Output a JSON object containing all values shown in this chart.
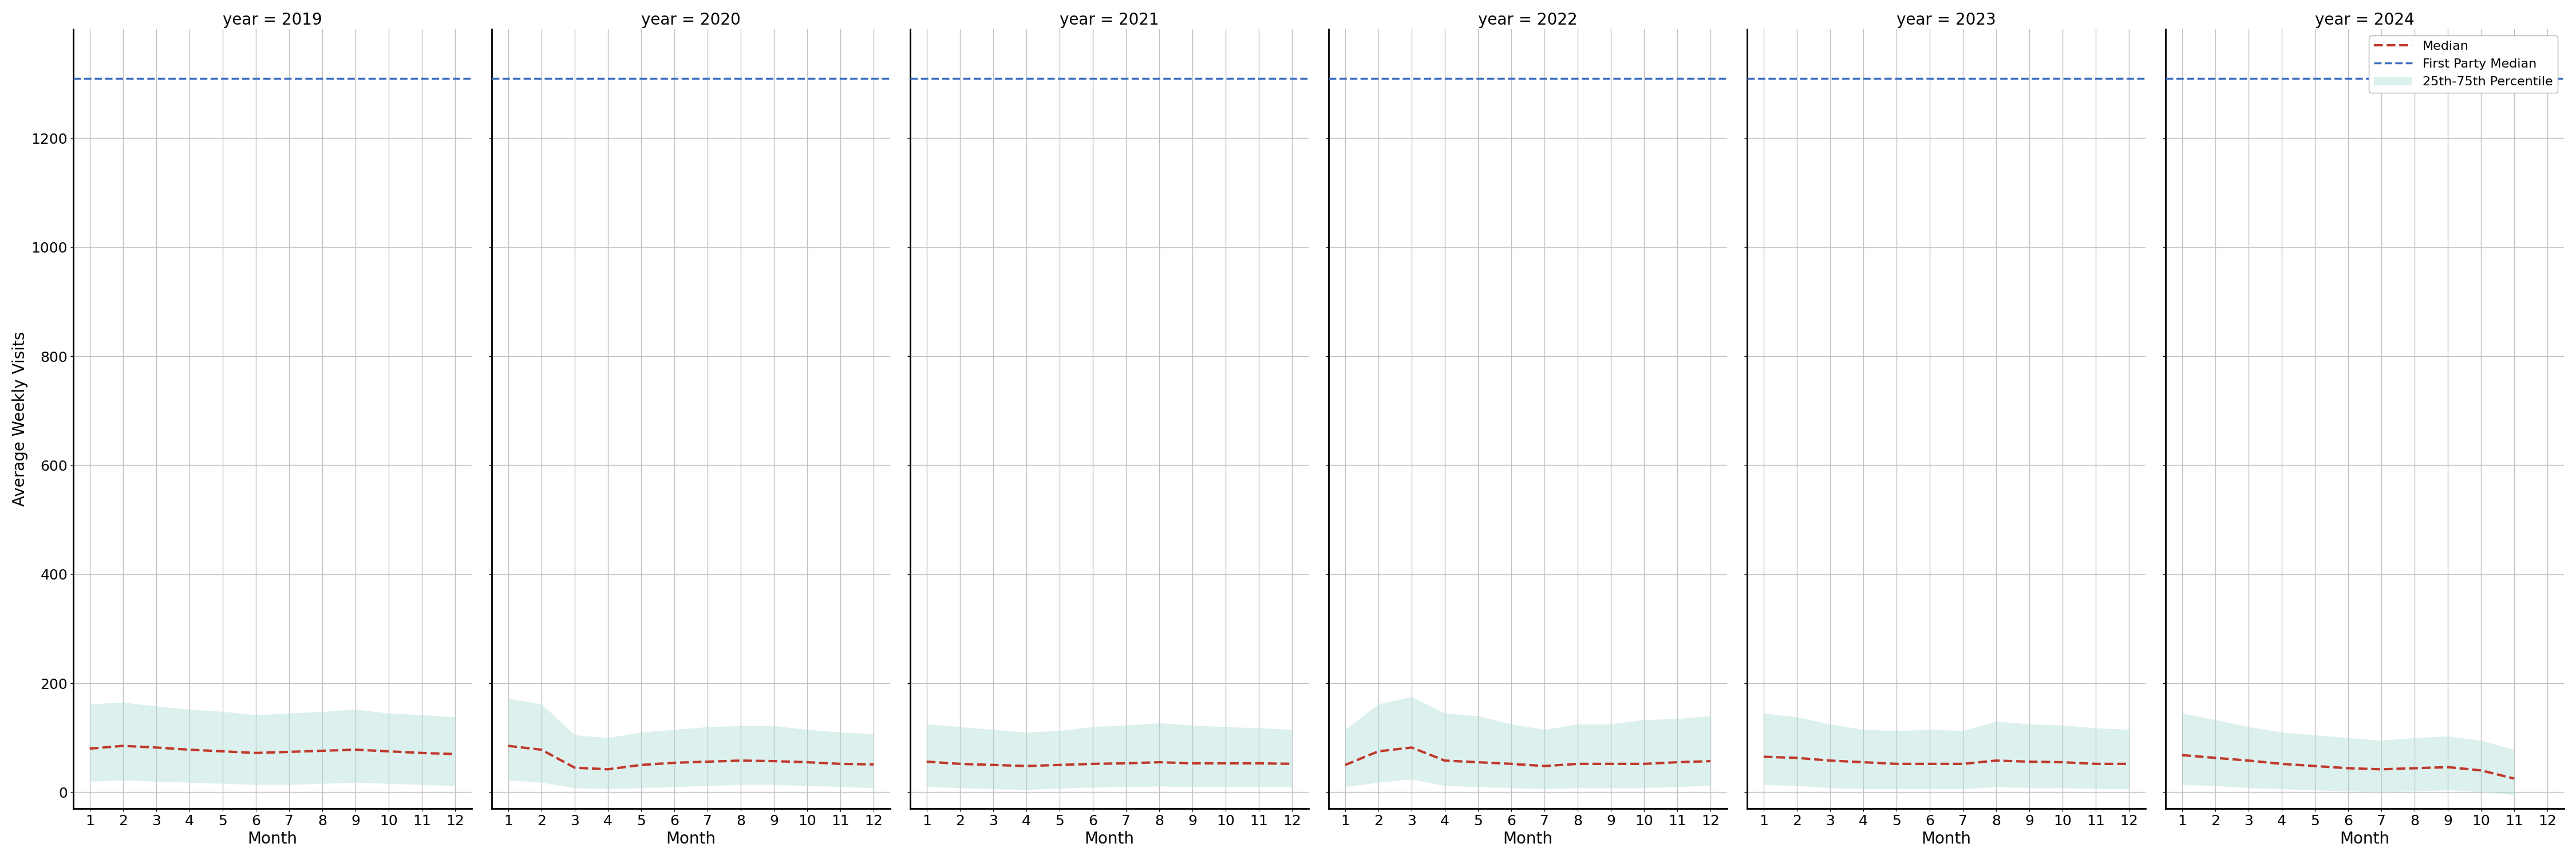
{
  "years": [
    2019,
    2020,
    2021,
    2022,
    2023,
    2024
  ],
  "months": [
    1,
    2,
    3,
    4,
    5,
    6,
    7,
    8,
    9,
    10,
    11,
    12
  ],
  "first_party_median": 1310,
  "ylabel": "Average Weekly Visits",
  "xlabel": "Month",
  "ylim": [
    -30,
    1400
  ],
  "yticks": [
    0,
    200,
    400,
    600,
    800,
    1000,
    1200
  ],
  "bg_color": "#ffffff",
  "grid_color": "#c0c0c0",
  "fill_color": "#b2dfdb",
  "fill_alpha": 0.45,
  "median_color": "#c0392b",
  "fp_color": "#3a6dbf",
  "median_linewidth": 3.0,
  "fp_linewidth": 2.5,
  "legend_labels": [
    "Median",
    "First Party Median",
    "25th-75th Percentile"
  ],
  "median_data": {
    "2019": [
      80,
      85,
      82,
      78,
      75,
      72,
      74,
      76,
      78,
      75,
      72,
      70
    ],
    "2020": [
      85,
      78,
      45,
      42,
      50,
      54,
      56,
      58,
      57,
      55,
      52,
      51
    ],
    "2021": [
      56,
      52,
      50,
      48,
      50,
      52,
      53,
      55,
      53,
      53,
      53,
      52
    ],
    "2022": [
      50,
      75,
      82,
      58,
      55,
      52,
      48,
      52,
      52,
      52,
      55,
      57
    ],
    "2023": [
      65,
      63,
      58,
      55,
      52,
      52,
      52,
      58,
      56,
      55,
      52,
      52
    ],
    "2024": [
      68,
      63,
      58,
      52,
      48,
      44,
      42,
      44,
      46,
      40,
      25,
      null
    ]
  },
  "q25_data": {
    "2019": [
      20,
      22,
      20,
      18,
      16,
      14,
      14,
      16,
      18,
      16,
      14,
      12
    ],
    "2020": [
      22,
      18,
      8,
      6,
      8,
      10,
      12,
      14,
      14,
      12,
      10,
      8
    ],
    "2021": [
      10,
      8,
      6,
      5,
      7,
      9,
      10,
      11,
      10,
      10,
      10,
      10
    ],
    "2022": [
      10,
      18,
      24,
      12,
      10,
      8,
      6,
      8,
      8,
      8,
      10,
      12
    ],
    "2023": [
      14,
      12,
      8,
      6,
      6,
      6,
      6,
      10,
      8,
      8,
      6,
      6
    ],
    "2024": [
      14,
      12,
      8,
      6,
      4,
      2,
      1,
      2,
      4,
      1,
      -5,
      null
    ]
  },
  "q75_data": {
    "2019": [
      162,
      165,
      158,
      152,
      148,
      142,
      145,
      148,
      152,
      145,
      142,
      138
    ],
    "2020": [
      172,
      162,
      105,
      100,
      110,
      115,
      120,
      122,
      122,
      115,
      110,
      107
    ],
    "2021": [
      125,
      120,
      115,
      110,
      113,
      120,
      123,
      127,
      123,
      120,
      118,
      115
    ],
    "2022": [
      115,
      162,
      175,
      145,
      140,
      125,
      115,
      125,
      125,
      133,
      135,
      140
    ],
    "2023": [
      145,
      138,
      125,
      115,
      113,
      115,
      113,
      130,
      125,
      123,
      118,
      115
    ],
    "2024": [
      145,
      133,
      120,
      110,
      105,
      100,
      95,
      100,
      103,
      95,
      78,
      null
    ]
  }
}
